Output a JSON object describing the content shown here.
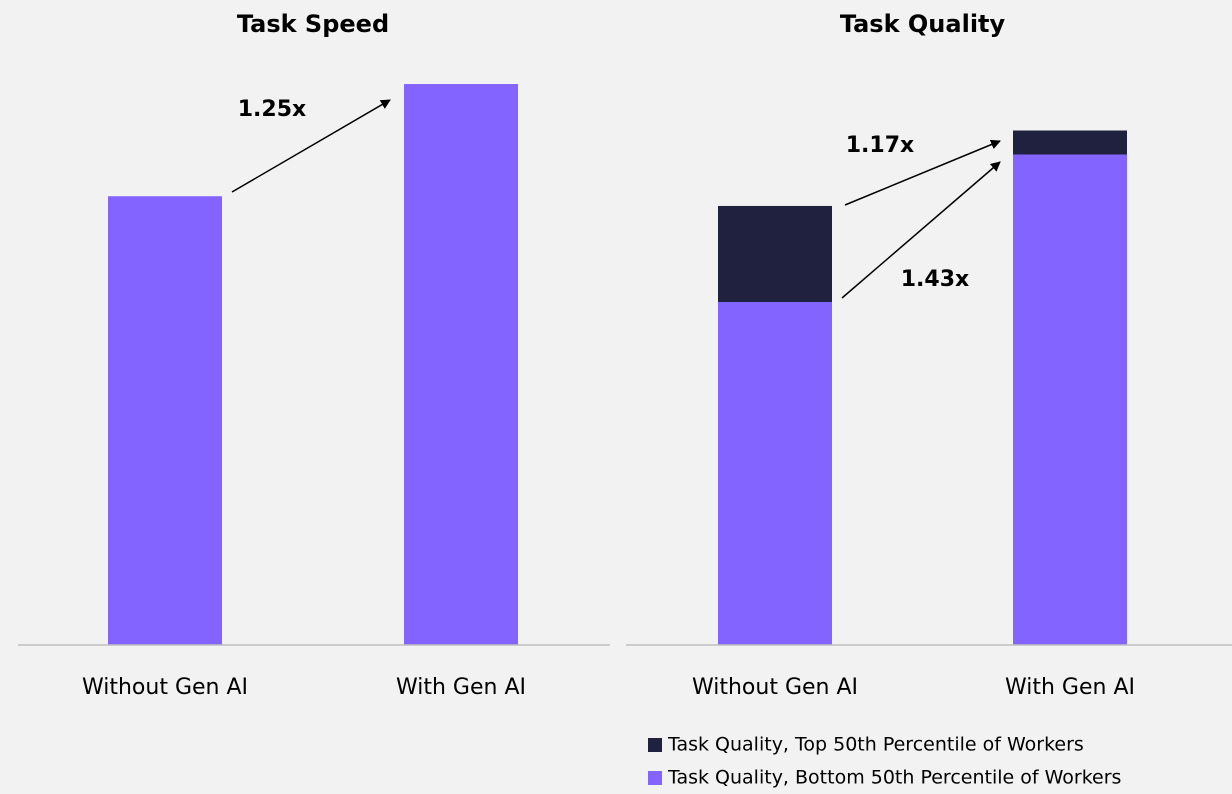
{
  "chart_data": [
    {
      "type": "bar",
      "title": "Task Speed",
      "categories": [
        "Without Gen AI",
        "With Gen AI"
      ],
      "values": [
        1.0,
        1.25
      ],
      "color": "#8364ff",
      "ylim": [
        0,
        1.3
      ],
      "annotations": [
        "1.25x"
      ]
    },
    {
      "type": "stacked_bar",
      "title": "Task Quality",
      "categories": [
        "Without Gen AI",
        "With Gen AI"
      ],
      "series": [
        {
          "name": "Task Quality, Bottom 50th Percentile of Workers",
          "color": "#8364ff",
          "values": [
            1.0,
            1.43
          ]
        },
        {
          "name": "Task Quality, Top 50th Percentile of Workers",
          "color": "#20213f",
          "values": [
            0.28,
            0.07
          ]
        }
      ],
      "ylim": [
        0,
        1.5
      ],
      "annotations": [
        "1.17x",
        "1.43x"
      ]
    }
  ]
}
